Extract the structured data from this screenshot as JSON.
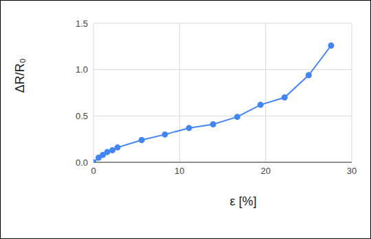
{
  "chart_data": {
    "type": "line",
    "x_label": "ε [%]",
    "y_label": "ΔR/R₀",
    "x": [
      0,
      0.6,
      1.1,
      1.6,
      2.2,
      2.8,
      5.6,
      8.3,
      11.1,
      13.9,
      16.7,
      19.4,
      22.2,
      25,
      27.6
    ],
    "values": [
      0,
      0.05,
      0.08,
      0.11,
      0.13,
      0.16,
      0.24,
      0.3,
      0.37,
      0.41,
      0.49,
      0.62,
      0.7,
      0.94,
      1.26
    ],
    "color": "#4285f4",
    "marker": "circle",
    "xlim": [
      0,
      30
    ],
    "xticks": [
      0,
      10,
      20,
      30
    ],
    "ylim": [
      0,
      1.5
    ],
    "yticks": [
      {
        "value": 0,
        "label": "0.0"
      },
      0.5,
      {
        "value": 1,
        "label": "1.0"
      },
      1.5
    ],
    "grid": true
  }
}
